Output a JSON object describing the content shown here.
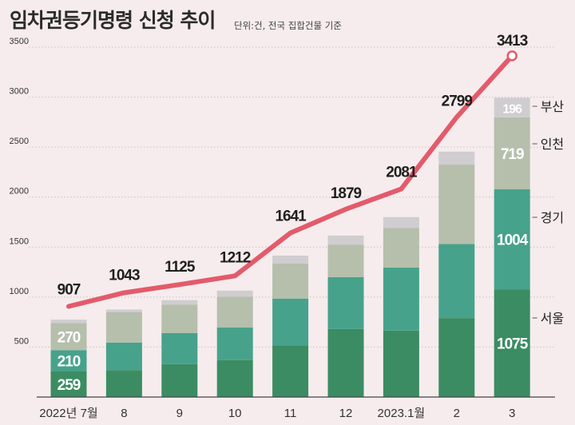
{
  "header": {
    "title": "임차권등기명령 신청 추이",
    "subtitle": "단위:건, 전국 집합건물 기준"
  },
  "colors": {
    "background": "#f6eced",
    "seoul": "#3b8c63",
    "gyeonggi": "#47a28b",
    "incheon": "#b5bfac",
    "busan": "#d0cdd0",
    "line": "#e35b6b",
    "grid": "#c9c2c4",
    "axis": "#444444"
  },
  "chart_data": {
    "type": "stacked-bar+line",
    "title": "임차권등기명령 신청 추이",
    "subtitle": "단위:건, 전국 집합건물 기준",
    "categories": [
      "2022년 7월",
      "8",
      "9",
      "10",
      "11",
      "12",
      "2023.1월",
      "2",
      "3"
    ],
    "ylim": [
      0,
      3500
    ],
    "yticks": [
      500,
      1000,
      1500,
      2000,
      2500,
      3000,
      3500
    ],
    "series": [
      {
        "name": "서울",
        "key": "seoul",
        "values": [
          259,
          270,
          330,
          370,
          515,
          680,
          665,
          790,
          1075
        ]
      },
      {
        "name": "경기",
        "key": "gyeonggi",
        "values": [
          210,
          275,
          310,
          325,
          470,
          520,
          630,
          740,
          1004
        ]
      },
      {
        "name": "인천",
        "key": "incheon",
        "values": [
          270,
          305,
          285,
          310,
          350,
          325,
          395,
          795,
          719
        ]
      },
      {
        "name": "부산",
        "key": "busan",
        "values": [
          35,
          25,
          45,
          60,
          80,
          90,
          110,
          130,
          196
        ]
      }
    ],
    "bar_labels": {
      "seoul": [
        "259",
        "",
        "",
        "",
        "",
        "",
        "",
        "",
        "1075"
      ],
      "gyeonggi": [
        "210",
        "",
        "",
        "",
        "",
        "",
        "",
        "",
        "1004"
      ],
      "incheon": [
        "270",
        "",
        "",
        "",
        "",
        "",
        "",
        "",
        "719"
      ],
      "busan": [
        "",
        "",
        "",
        "",
        "",
        "",
        "",
        "",
        "196"
      ]
    },
    "line": {
      "name": "total",
      "values": [
        907,
        1043,
        1125,
        1212,
        1641,
        1879,
        2081,
        2799,
        3413
      ]
    },
    "legend": [
      {
        "label": "부산",
        "key": "busan"
      },
      {
        "label": "인천",
        "key": "incheon"
      },
      {
        "label": "경기",
        "key": "gyeonggi"
      },
      {
        "label": "서울",
        "key": "seoul"
      }
    ]
  }
}
